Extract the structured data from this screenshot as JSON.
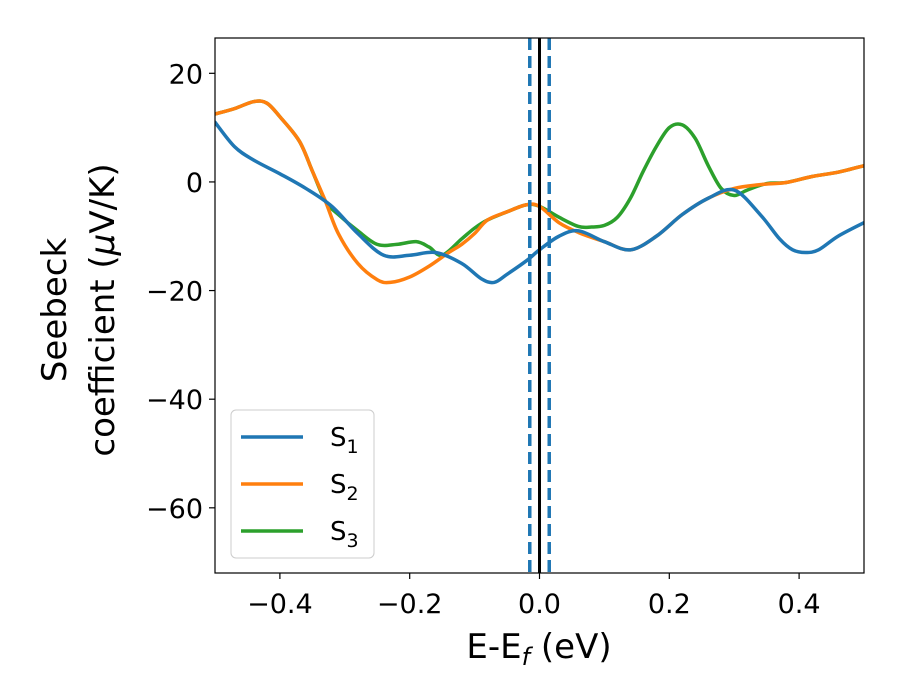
{
  "chart_data": {
    "type": "line",
    "xlabel": "E-E",
    "xlabel_sub": "f",
    "xlabel_unit": " (eV)",
    "ylabel_line1": "Seebeck",
    "ylabel_line2": "coefficient  (",
    "ylabel_mu": "μ",
    "ylabel_unit": "V/K)",
    "xlim": [
      -0.5,
      0.5
    ],
    "ylim": [
      -72,
      26.5
    ],
    "xticks": [
      -0.4,
      -0.2,
      0.0,
      0.2,
      0.4
    ],
    "xtick_labels": [
      "−0.4",
      "−0.2",
      "0.0",
      "0.2",
      "0.4"
    ],
    "yticks": [
      -60,
      -40,
      -20,
      0,
      20
    ],
    "ytick_labels": [
      "−60",
      "−40",
      "−20",
      "0",
      "20"
    ],
    "grid": false,
    "legend_position": "lower-left",
    "vertical_lines": [
      {
        "x": 0.0,
        "color": "#000000",
        "style": "solid"
      },
      {
        "x": -0.015,
        "color": "#1f77b4",
        "style": "dashed"
      },
      {
        "x": 0.015,
        "color": "#1f77b4",
        "style": "dashed"
      }
    ],
    "series": [
      {
        "name": "S",
        "sub": "1",
        "color": "#1f77b4",
        "x": [
          -0.5,
          -0.47,
          -0.44,
          -0.4,
          -0.36,
          -0.32,
          -0.28,
          -0.24,
          -0.2,
          -0.16,
          -0.12,
          -0.09,
          -0.07,
          -0.05,
          -0.02,
          0.0,
          0.03,
          0.06,
          0.1,
          0.14,
          0.18,
          0.22,
          0.26,
          0.3,
          0.34,
          0.37,
          0.39,
          0.41,
          0.43,
          0.46,
          0.5
        ],
        "y": [
          11,
          6.5,
          4,
          1.5,
          -1.2,
          -4.5,
          -9.5,
          -13.5,
          -13.5,
          -13,
          -15,
          -17.8,
          -18.5,
          -17,
          -14.5,
          -12.5,
          -10,
          -9,
          -11,
          -12.5,
          -10,
          -6,
          -3,
          -1.5,
          -6,
          -10.5,
          -12.5,
          -13,
          -12.5,
          -10,
          -7.5
        ]
      },
      {
        "name": "S",
        "sub": "2",
        "color": "#ff7f0e",
        "x": [
          -0.5,
          -0.47,
          -0.44,
          -0.42,
          -0.4,
          -0.37,
          -0.35,
          -0.33,
          -0.31,
          -0.28,
          -0.25,
          -0.23,
          -0.2,
          -0.17,
          -0.14,
          -0.12,
          -0.1,
          -0.08,
          -0.05,
          -0.02,
          0.0,
          0.03,
          0.06,
          0.1,
          0.14,
          0.18,
          0.22,
          0.26,
          0.3,
          0.34,
          0.38,
          0.42,
          0.46,
          0.5
        ],
        "y": [
          12.5,
          13.5,
          14.8,
          14.5,
          12,
          7.5,
          2,
          -3.5,
          -9.5,
          -15,
          -18,
          -18.5,
          -17.5,
          -15.5,
          -13,
          -11.5,
          -9.5,
          -7,
          -5.5,
          -4.2,
          -4.5,
          -7.5,
          -9.3,
          -11,
          -12.5,
          -10,
          -6,
          -3,
          -1.2,
          -0.5,
          -0.1,
          1,
          1.8,
          3
        ]
      },
      {
        "name": "S",
        "sub": "3",
        "color": "#2ca02c",
        "x": [
          -0.5,
          -0.47,
          -0.44,
          -0.42,
          -0.4,
          -0.37,
          -0.35,
          -0.33,
          -0.31,
          -0.28,
          -0.25,
          -0.22,
          -0.19,
          -0.17,
          -0.15,
          -0.12,
          -0.1,
          -0.08,
          -0.05,
          -0.02,
          0.0,
          0.03,
          0.06,
          0.08,
          0.1,
          0.12,
          0.14,
          0.16,
          0.18,
          0.2,
          0.22,
          0.24,
          0.26,
          0.28,
          0.3,
          0.32,
          0.35,
          0.38,
          0.42,
          0.46,
          0.5
        ],
        "y": [
          12.5,
          13.5,
          14.8,
          14.5,
          12,
          7.5,
          2,
          -3.5,
          -6,
          -9,
          -11.5,
          -11.5,
          -11,
          -12,
          -13.5,
          -10.5,
          -8.5,
          -7,
          -5.5,
          -4.2,
          -4.5,
          -6.5,
          -8.2,
          -8.3,
          -8,
          -6.5,
          -3,
          2,
          6.5,
          10,
          10.5,
          8,
          3,
          -1.2,
          -2.5,
          -1.5,
          -0.3,
          -0.1,
          1,
          1.8,
          3
        ]
      }
    ]
  }
}
